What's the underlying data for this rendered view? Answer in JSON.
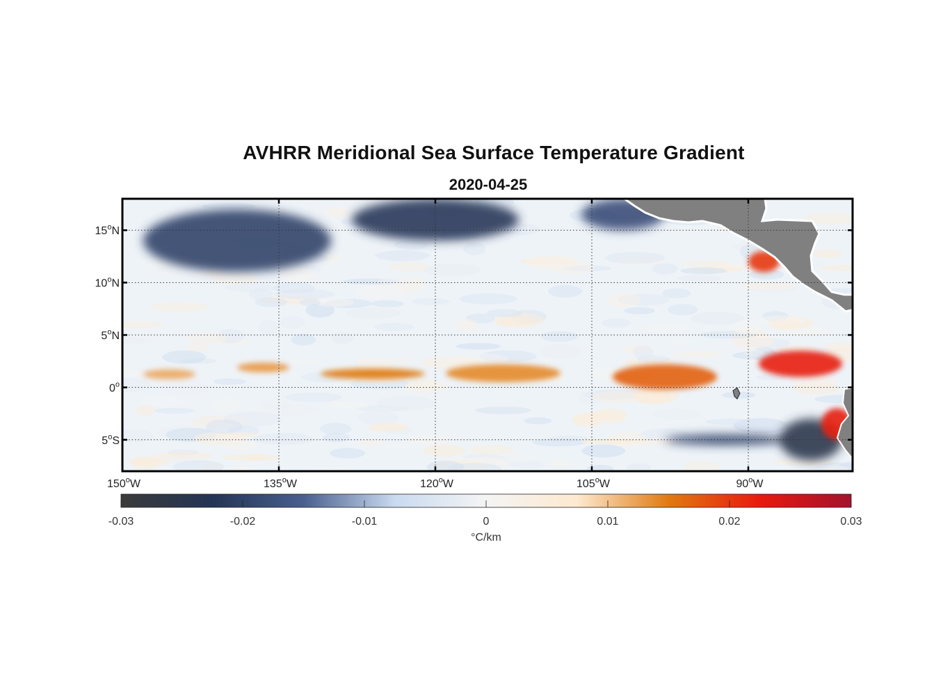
{
  "title": "AVHRR Meridional Sea Surface Temperature Gradient",
  "subtitle": "2020-04-25",
  "map": {
    "lon_range": [
      -150,
      -80
    ],
    "lat_range": [
      -8,
      18
    ],
    "lon_ticks": [
      {
        "value": -150,
        "deg": "150",
        "hemi": "W"
      },
      {
        "value": -135,
        "deg": "135",
        "hemi": "W"
      },
      {
        "value": -120,
        "deg": "120",
        "hemi": "W"
      },
      {
        "value": -105,
        "deg": "105",
        "hemi": "W"
      },
      {
        "value": -90,
        "deg": "90",
        "hemi": "W"
      }
    ],
    "lat_ticks": [
      {
        "value": 15,
        "deg": "15",
        "hemi": "N"
      },
      {
        "value": 10,
        "deg": "10",
        "hemi": "N"
      },
      {
        "value": 5,
        "deg": "5",
        "hemi": "N"
      },
      {
        "value": 0,
        "deg": "0",
        "hemi": ""
      },
      {
        "value": -5,
        "deg": "5",
        "hemi": "S"
      }
    ],
    "grid": "dotted",
    "land_color": "#808080"
  },
  "colorbar": {
    "label": "°C/km",
    "range": [
      -0.03,
      0.03
    ],
    "tick_values": [
      -0.03,
      -0.02,
      -0.01,
      0,
      0.01,
      0.02,
      0.03
    ],
    "tick_labels": [
      "-0.03",
      "-0.02",
      "-0.01",
      "0",
      "0.01",
      "0.02",
      "0.03"
    ],
    "stops": [
      "#3a3a3a",
      "#243456",
      "#4a5f8f",
      "#c9daf0",
      "#f4f4f4",
      "#fde9cf",
      "#e07a10",
      "#e8190e",
      "#a3132d"
    ]
  },
  "features": {
    "positive_bands": [
      {
        "lon": [
          -148,
          -143
        ],
        "lat": [
          1,
          1.5
        ],
        "strength": 0.012
      },
      {
        "lon": [
          -139,
          -134
        ],
        "lat": [
          1.5,
          2.3
        ],
        "strength": 0.013
      },
      {
        "lon": [
          -131,
          -121
        ],
        "lat": [
          0.8,
          1.8
        ],
        "strength": 0.015
      },
      {
        "lon": [
          -119,
          -108
        ],
        "lat": [
          0.5,
          2.2
        ],
        "strength": 0.014
      },
      {
        "lon": [
          -103,
          -93
        ],
        "lat": [
          -0.2,
          2.2
        ],
        "strength": 0.017
      },
      {
        "lon": [
          -89,
          -81
        ],
        "lat": [
          1,
          3.5
        ],
        "strength": 0.022
      },
      {
        "lon": [
          -90,
          -87
        ],
        "lat": [
          11,
          13
        ],
        "strength": 0.02
      },
      {
        "lon": [
          -83,
          -80
        ],
        "lat": [
          -5,
          -2
        ],
        "strength": 0.022
      }
    ],
    "negative_bands": [
      {
        "lon": [
          -148,
          -130
        ],
        "lat": [
          11,
          17
        ],
        "strength": -0.02
      },
      {
        "lon": [
          -128,
          -112
        ],
        "lat": [
          14,
          18
        ],
        "strength": -0.022
      },
      {
        "lon": [
          -106,
          -98
        ],
        "lat": [
          15,
          18
        ],
        "strength": -0.018
      },
      {
        "lon": [
          -98,
          -86
        ],
        "lat": [
          -5.5,
          -4.5
        ],
        "strength": -0.02
      },
      {
        "lon": [
          -87,
          -81
        ],
        "lat": [
          -7,
          -3
        ],
        "strength": -0.025
      }
    ]
  }
}
